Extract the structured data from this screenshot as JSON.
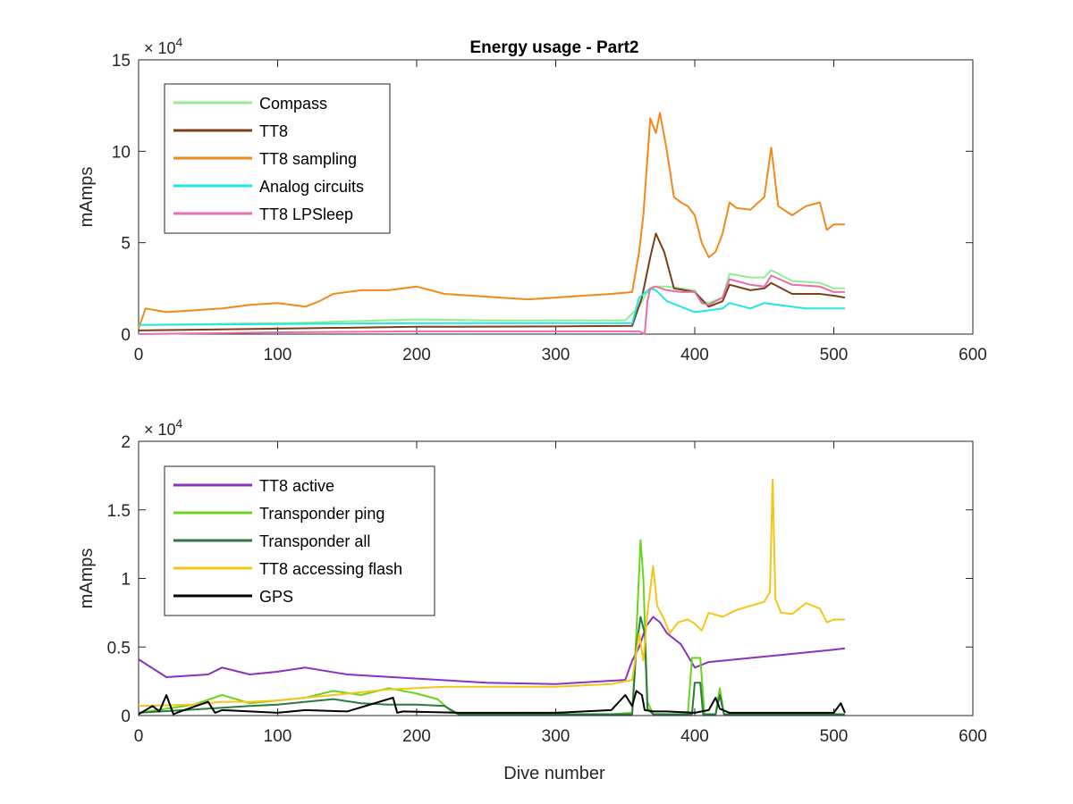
{
  "figure": {
    "title": "Energy usage - Part2",
    "xlabel": "Dive number"
  },
  "chart_data": [
    {
      "type": "line",
      "title": "Energy usage - Part2",
      "xlabel": "",
      "ylabel": "mAmps",
      "xlim": [
        0,
        600
      ],
      "ylim": [
        0,
        150000
      ],
      "xticks": [
        0,
        100,
        200,
        300,
        400,
        500,
        600
      ],
      "yticks": [
        0,
        50000,
        100000,
        150000
      ],
      "xtick_labels": [
        "0",
        "100",
        "200",
        "300",
        "400",
        "500",
        "600"
      ],
      "ytick_labels": [
        "0",
        "5",
        "10",
        "15"
      ],
      "y_exponent": {
        "base": "× 10",
        "power": "4"
      },
      "grid": false,
      "legend_position": "top-left",
      "series": [
        {
          "name": "Compass",
          "color": "#90EE90",
          "x": [
            0,
            50,
            100,
            120,
            150,
            200,
            250,
            300,
            350,
            360,
            365,
            370,
            380,
            390,
            400,
            405,
            410,
            420,
            425,
            440,
            450,
            455,
            470,
            490,
            500,
            508
          ],
          "y": [
            5000,
            5500,
            6000,
            6200,
            7000,
            8000,
            7500,
            7500,
            7500,
            15000,
            22000,
            26000,
            26000,
            25000,
            24000,
            18000,
            17000,
            20000,
            33000,
            31000,
            31000,
            35000,
            29000,
            28000,
            25000,
            25000
          ]
        },
        {
          "name": "TT8",
          "color": "#7B3F1B",
          "x": [
            0,
            100,
            200,
            300,
            355,
            362,
            368,
            372,
            378,
            385,
            400,
            410,
            420,
            425,
            440,
            450,
            455,
            470,
            490,
            500,
            508
          ],
          "y": [
            2000,
            3000,
            4000,
            4200,
            4500,
            20000,
            42000,
            55000,
            45000,
            25000,
            23000,
            15000,
            18000,
            27000,
            24000,
            25000,
            28000,
            22000,
            22000,
            21000,
            20000
          ]
        },
        {
          "name": "TT8 sampling",
          "color": "#F08A1C",
          "x": [
            0,
            5,
            20,
            40,
            60,
            80,
            100,
            120,
            130,
            140,
            160,
            180,
            200,
            220,
            240,
            260,
            280,
            300,
            320,
            340,
            355,
            360,
            363,
            368,
            372,
            375,
            380,
            385,
            390,
            395,
            400,
            405,
            410,
            415,
            420,
            425,
            430,
            440,
            450,
            455,
            460,
            470,
            480,
            490,
            495,
            500,
            508
          ],
          "y": [
            3000,
            14000,
            12000,
            13000,
            14000,
            16000,
            17000,
            15000,
            18000,
            22000,
            24000,
            24000,
            26000,
            22000,
            21000,
            20000,
            19000,
            20000,
            21000,
            22000,
            23000,
            45000,
            65000,
            118000,
            110000,
            121000,
            100000,
            75000,
            72000,
            70000,
            65000,
            50000,
            42000,
            45000,
            55000,
            72000,
            69000,
            68000,
            75000,
            102000,
            70000,
            65000,
            70000,
            72000,
            57000,
            60000,
            60000
          ]
        },
        {
          "name": "Analog circuits",
          "color": "#22E5E5",
          "x": [
            0,
            100,
            200,
            300,
            355,
            360,
            368,
            372,
            380,
            400,
            410,
            420,
            425,
            440,
            450,
            460,
            480,
            500,
            508
          ],
          "y": [
            5000,
            5500,
            6000,
            6000,
            6000,
            20000,
            25000,
            24000,
            18000,
            12000,
            13000,
            14000,
            17000,
            14000,
            17000,
            16000,
            14000,
            14000,
            14000
          ]
        },
        {
          "name": "TT8 LPSleep",
          "color": "#E86EAA",
          "x": [
            0,
            100,
            200,
            300,
            360,
            364,
            366,
            368,
            372,
            380,
            390,
            400,
            405,
            410,
            420,
            425,
            440,
            450,
            455,
            470,
            490,
            500,
            508
          ],
          "y": [
            0,
            1000,
            1500,
            1500,
            1500,
            0,
            18000,
            25000,
            26000,
            24000,
            23000,
            23000,
            17000,
            16000,
            20000,
            30000,
            27000,
            26000,
            32000,
            27000,
            26000,
            23000,
            23000
          ]
        }
      ]
    },
    {
      "type": "line",
      "title": "",
      "xlabel": "Dive number",
      "ylabel": "mAmps",
      "xlim": [
        0,
        600
      ],
      "ylim": [
        0,
        20000
      ],
      "xticks": [
        0,
        100,
        200,
        300,
        400,
        500,
        600
      ],
      "yticks": [
        0,
        5000,
        10000,
        15000,
        20000
      ],
      "xtick_labels": [
        "0",
        "100",
        "200",
        "300",
        "400",
        "500",
        "600"
      ],
      "ytick_labels": [
        "0",
        "0.5",
        "1",
        "1.5",
        "2"
      ],
      "y_exponent": {
        "base": "× 10",
        "power": "4"
      },
      "grid": false,
      "legend_position": "top-left",
      "series": [
        {
          "name": "TT8 active",
          "color": "#8A32C2",
          "x": [
            0,
            20,
            50,
            60,
            80,
            100,
            120,
            150,
            200,
            250,
            300,
            350,
            355,
            360,
            365,
            370,
            375,
            380,
            390,
            400,
            410,
            420,
            440,
            460,
            480,
            500,
            508
          ],
          "y": [
            4100,
            2800,
            3000,
            3500,
            3000,
            3200,
            3500,
            3000,
            2700,
            2400,
            2300,
            2600,
            4000,
            5000,
            6500,
            7200,
            6800,
            6000,
            5200,
            3500,
            3900,
            4000,
            4200,
            4400,
            4600,
            4800,
            4900
          ]
        },
        {
          "name": "Transponder ping",
          "color": "#6BD41C",
          "x": [
            0,
            40,
            60,
            80,
            120,
            140,
            160,
            180,
            200,
            215,
            225,
            230,
            280,
            300,
            340,
            355,
            358,
            361,
            363,
            366,
            370,
            375,
            395,
            398,
            404,
            407,
            415,
            418,
            421,
            425,
            500,
            508
          ],
          "y": [
            200,
            800,
            1500,
            900,
            1300,
            1800,
            1500,
            2000,
            1600,
            1200,
            300,
            100,
            200,
            100,
            100,
            200,
            6000,
            12800,
            10000,
            1000,
            100,
            100,
            100,
            4200,
            4200,
            100,
            100,
            2000,
            100,
            100,
            100,
            100
          ]
        },
        {
          "name": "Transponder all",
          "color": "#2A7A42",
          "x": [
            0,
            50,
            80,
            100,
            120,
            140,
            160,
            180,
            200,
            220,
            230,
            250,
            300,
            355,
            358,
            361,
            364,
            366,
            370,
            398,
            400,
            404,
            406,
            415,
            418,
            421,
            430,
            508
          ],
          "y": [
            200,
            500,
            700,
            800,
            1000,
            1200,
            900,
            800,
            800,
            700,
            100,
            100,
            100,
            100,
            5000,
            7200,
            6000,
            500,
            100,
            100,
            2400,
            2400,
            100,
            100,
            1500,
            100,
            100,
            100
          ]
        },
        {
          "name": "TT8 accessing flash",
          "color": "#F5C518",
          "x": [
            0,
            40,
            60,
            80,
            100,
            120,
            140,
            160,
            180,
            200,
            220,
            240,
            260,
            280,
            300,
            320,
            340,
            355,
            360,
            363,
            366,
            370,
            373,
            378,
            382,
            388,
            395,
            400,
            405,
            410,
            420,
            430,
            440,
            450,
            454,
            456,
            458,
            462,
            470,
            480,
            490,
            495,
            500,
            508
          ],
          "y": [
            700,
            800,
            1000,
            1000,
            1100,
            1300,
            1500,
            1700,
            1900,
            2000,
            2100,
            2100,
            2100,
            2100,
            2100,
            2200,
            2300,
            2600,
            6000,
            4000,
            7500,
            10900,
            8000,
            7000,
            6000,
            6800,
            7000,
            6700,
            6200,
            7500,
            7200,
            7700,
            8000,
            8300,
            9000,
            17200,
            8500,
            7500,
            7400,
            8200,
            7800,
            6800,
            7000,
            7000
          ]
        },
        {
          "name": "GPS",
          "color": "#000000",
          "x": [
            0,
            10,
            15,
            20,
            25,
            30,
            50,
            55,
            60,
            100,
            120,
            150,
            183,
            186,
            190,
            230,
            300,
            340,
            350,
            355,
            358,
            362,
            364,
            370,
            380,
            400,
            410,
            415,
            418,
            425,
            450,
            500,
            505,
            508
          ],
          "y": [
            100,
            700,
            300,
            1500,
            100,
            300,
            1000,
            200,
            400,
            200,
            400,
            300,
            1300,
            200,
            300,
            200,
            200,
            400,
            1500,
            700,
            1800,
            1500,
            400,
            300,
            300,
            200,
            400,
            1300,
            500,
            200,
            200,
            200,
            900,
            200
          ]
        }
      ]
    }
  ]
}
